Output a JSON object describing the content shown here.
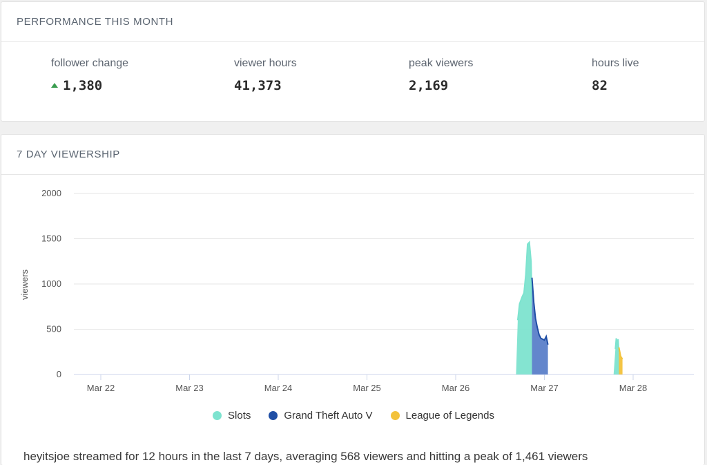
{
  "performance": {
    "title": "PERFORMANCE THIS MONTH",
    "stats": [
      {
        "label": "follower change",
        "value": "1,380",
        "trend": "up"
      },
      {
        "label": "viewer hours",
        "value": "41,373"
      },
      {
        "label": "peak viewers",
        "value": "2,169"
      },
      {
        "label": "hours live",
        "value": "82"
      }
    ]
  },
  "viewership": {
    "title": "7 DAY VIEWERSHIP",
    "summary": "heyitsjoe streamed for 12 hours in the last 7 days, averaging 568 viewers and hitting a peak of 1,461 viewers"
  },
  "colors": {
    "trend_up": "#3a9d4f",
    "slots": "#7de3cf",
    "gta": "#1f4ea5",
    "gta_fill": "#5b7fc9",
    "lol": "#f3c23b"
  },
  "chart_data": {
    "type": "area",
    "ylabel": "viewers",
    "ylim": [
      0,
      2000
    ],
    "y_ticks": [
      "0",
      "500",
      "1000",
      "1500",
      "2000"
    ],
    "x_ticks": [
      "Mar 22",
      "Mar 23",
      "Mar 24",
      "Mar 25",
      "Mar 26",
      "Mar 27",
      "Mar 28"
    ],
    "grid": true,
    "legend_position": "bottom",
    "series": [
      {
        "name": "Slots",
        "color": "#7de3cf",
        "segments": [
          [
            [
              26.68,
              0
            ],
            [
              26.7,
              600
            ],
            [
              26.72,
              780
            ],
            [
              26.75,
              860
            ],
            [
              26.77,
              900
            ],
            [
              26.79,
              1100
            ],
            [
              26.81,
              1440
            ],
            [
              26.83,
              1461
            ],
            [
              26.85,
              1250
            ],
            [
              26.86,
              800
            ],
            [
              26.86,
              0
            ]
          ],
          [
            [
              27.78,
              0
            ],
            [
              27.8,
              280
            ],
            [
              27.81,
              400
            ],
            [
              27.82,
              330
            ],
            [
              27.83,
              390
            ],
            [
              27.84,
              250
            ],
            [
              27.85,
              0
            ]
          ]
        ]
      },
      {
        "name": "Grand Theft Auto V",
        "color": "#1f4ea5",
        "segments": [
          [
            [
              26.86,
              0
            ],
            [
              26.86,
              1070
            ],
            [
              26.88,
              800
            ],
            [
              26.9,
              620
            ],
            [
              26.92,
              520
            ],
            [
              26.94,
              440
            ],
            [
              26.96,
              400
            ],
            [
              26.98,
              390
            ],
            [
              27.0,
              380
            ],
            [
              27.02,
              420
            ],
            [
              27.04,
              330
            ],
            [
              27.04,
              0
            ]
          ]
        ]
      },
      {
        "name": "League of Legends",
        "color": "#f3c23b",
        "segments": [
          [
            [
              27.84,
              0
            ],
            [
              27.84,
              300
            ],
            [
              27.86,
              200
            ],
            [
              27.88,
              170
            ],
            [
              27.88,
              0
            ]
          ]
        ]
      }
    ]
  }
}
